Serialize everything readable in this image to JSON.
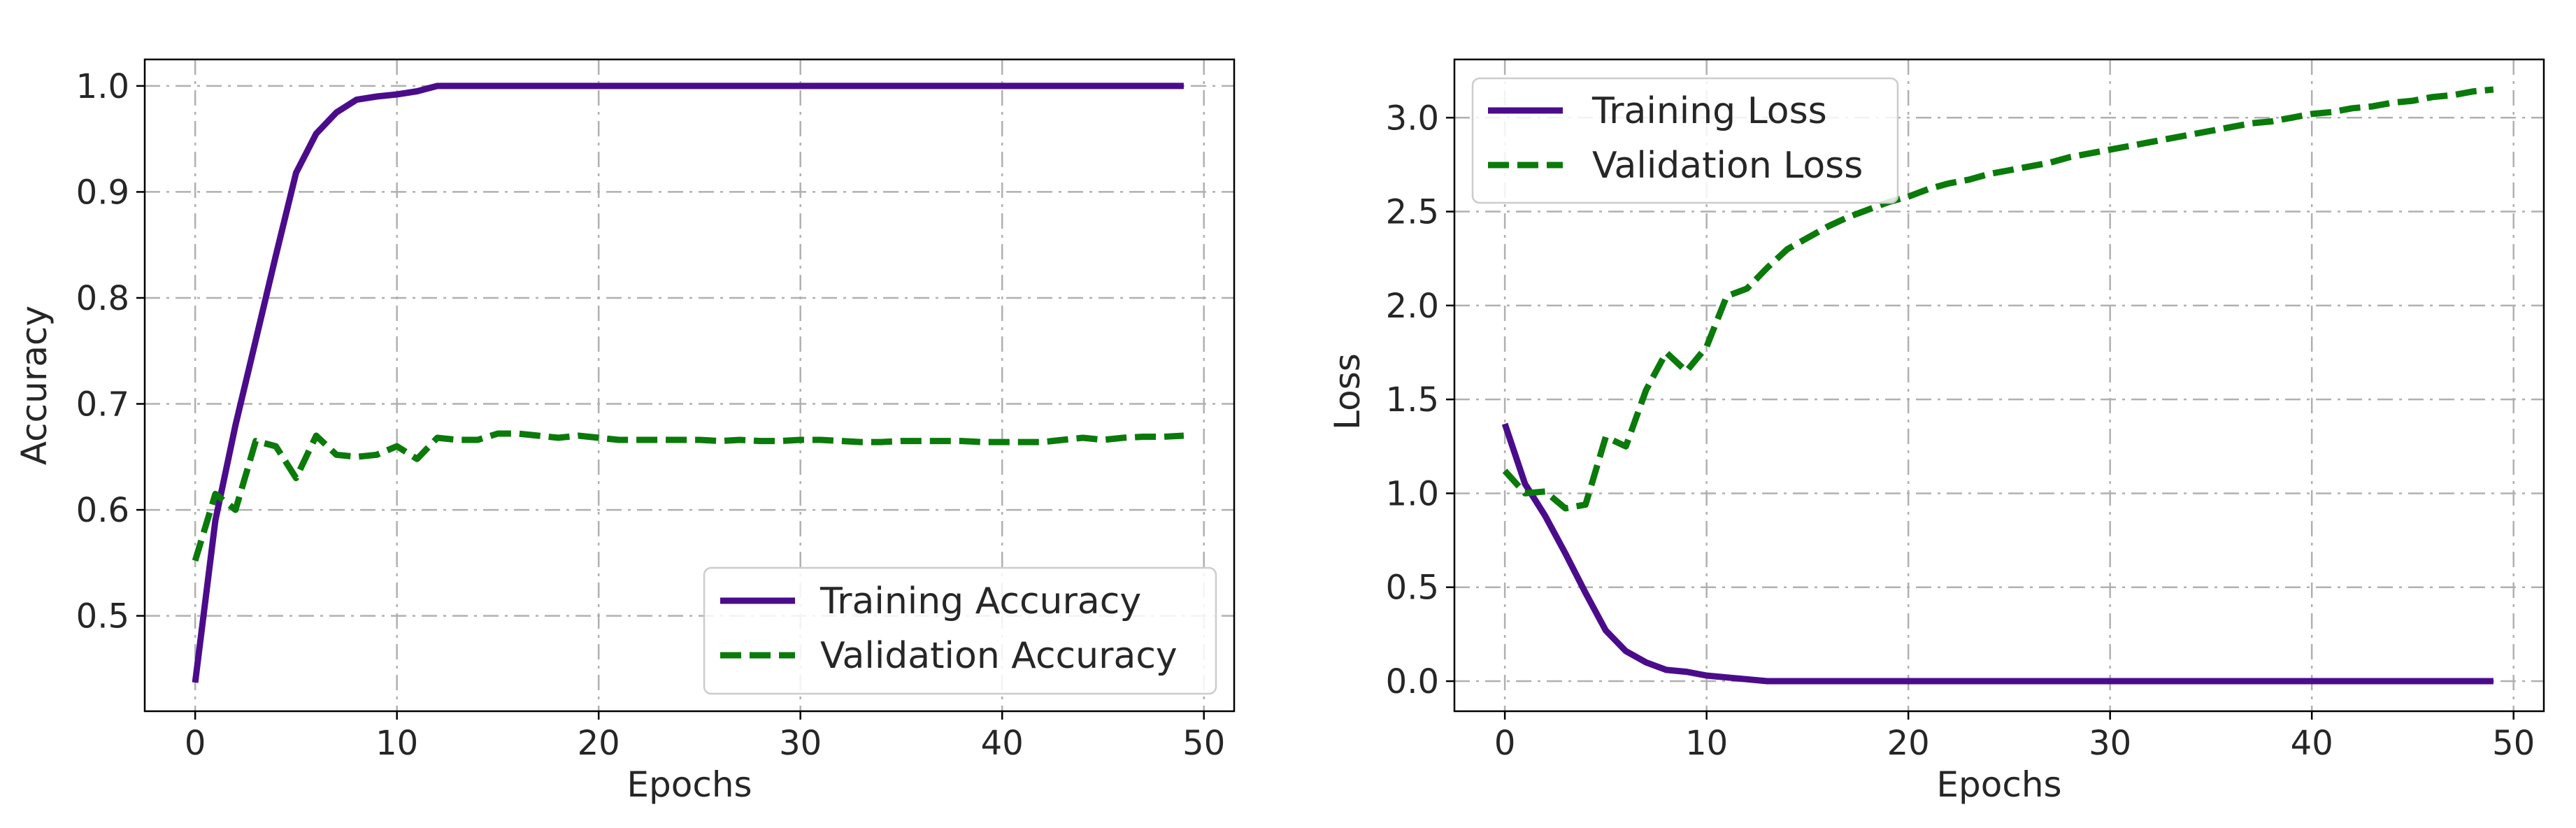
{
  "colors": {
    "training": "#4b0c8c",
    "validation": "#0a7a0a"
  },
  "chart_data": [
    {
      "type": "line",
      "title": "",
      "xlabel": "Epochs",
      "ylabel": "Accuracy",
      "xlim": [
        -2.5,
        51.5
      ],
      "ylim": [
        0.41,
        1.025
      ],
      "xticks": [
        0,
        10,
        20,
        30,
        40,
        50
      ],
      "xtick_labels": [
        "0",
        "10",
        "20",
        "30",
        "40",
        "50"
      ],
      "yticks": [
        0.5,
        0.6,
        0.7,
        0.8,
        0.9,
        1.0
      ],
      "ytick_labels": [
        "0.5",
        "0.6",
        "0.7",
        "0.8",
        "0.9",
        "1.0"
      ],
      "grid": true,
      "legend_position": "lower-right",
      "series": [
        {
          "name": "Training Accuracy",
          "style": "solid",
          "color": "#4b0c8c",
          "x": [
            0,
            1,
            2,
            3,
            4,
            5,
            6,
            7,
            8,
            9,
            10,
            11,
            12,
            13,
            14,
            15,
            16,
            17,
            18,
            19,
            20,
            21,
            22,
            23,
            24,
            25,
            26,
            27,
            28,
            29,
            30,
            31,
            32,
            33,
            34,
            35,
            36,
            37,
            38,
            39,
            40,
            41,
            42,
            43,
            44,
            45,
            46,
            47,
            48,
            49
          ],
          "values": [
            0.437,
            0.59,
            0.68,
            0.76,
            0.84,
            0.918,
            0.955,
            0.975,
            0.987,
            0.99,
            0.992,
            0.995,
            1.0,
            1.0,
            1.0,
            1.0,
            1.0,
            1.0,
            1.0,
            1.0,
            1.0,
            1.0,
            1.0,
            1.0,
            1.0,
            1.0,
            1.0,
            1.0,
            1.0,
            1.0,
            1.0,
            1.0,
            1.0,
            1.0,
            1.0,
            1.0,
            1.0,
            1.0,
            1.0,
            1.0,
            1.0,
            1.0,
            1.0,
            1.0,
            1.0,
            1.0,
            1.0,
            1.0,
            1.0,
            1.0
          ]
        },
        {
          "name": "Validation Accuracy",
          "style": "dashed",
          "color": "#0a7a0a",
          "x": [
            0,
            1,
            2,
            3,
            4,
            5,
            6,
            7,
            8,
            9,
            10,
            11,
            12,
            13,
            14,
            15,
            16,
            17,
            18,
            19,
            20,
            21,
            22,
            23,
            24,
            25,
            26,
            27,
            28,
            29,
            30,
            31,
            32,
            33,
            34,
            35,
            36,
            37,
            38,
            39,
            40,
            41,
            42,
            43,
            44,
            45,
            46,
            47,
            48,
            49
          ],
          "values": [
            0.552,
            0.615,
            0.6,
            0.665,
            0.66,
            0.63,
            0.67,
            0.652,
            0.65,
            0.652,
            0.66,
            0.648,
            0.668,
            0.666,
            0.666,
            0.672,
            0.672,
            0.67,
            0.668,
            0.67,
            0.668,
            0.666,
            0.666,
            0.666,
            0.666,
            0.666,
            0.665,
            0.666,
            0.665,
            0.665,
            0.666,
            0.666,
            0.665,
            0.664,
            0.664,
            0.665,
            0.665,
            0.665,
            0.665,
            0.664,
            0.664,
            0.664,
            0.664,
            0.666,
            0.668,
            0.666,
            0.668,
            0.669,
            0.669,
            0.67
          ]
        }
      ]
    },
    {
      "type": "line",
      "title": "",
      "xlabel": "Epochs",
      "ylabel": "Loss",
      "xlim": [
        -2.5,
        51.5
      ],
      "ylim": [
        -0.16,
        3.31
      ],
      "xticks": [
        0,
        10,
        20,
        30,
        40,
        50
      ],
      "xtick_labels": [
        "0",
        "10",
        "20",
        "30",
        "40",
        "50"
      ],
      "yticks": [
        0.0,
        0.5,
        1.0,
        1.5,
        2.0,
        2.5,
        3.0
      ],
      "ytick_labels": [
        "0.0",
        "0.5",
        "1.0",
        "1.5",
        "2.0",
        "2.5",
        "3.0"
      ],
      "grid": true,
      "legend_position": "upper-left",
      "series": [
        {
          "name": "Training Loss",
          "style": "solid",
          "color": "#4b0c8c",
          "x": [
            0,
            1,
            2,
            3,
            4,
            5,
            6,
            7,
            8,
            9,
            10,
            11,
            12,
            13,
            14,
            15,
            16,
            17,
            18,
            19,
            20,
            21,
            22,
            23,
            24,
            25,
            26,
            27,
            28,
            29,
            30,
            31,
            32,
            33,
            34,
            35,
            36,
            37,
            38,
            39,
            40,
            41,
            42,
            43,
            44,
            45,
            46,
            47,
            48,
            49
          ],
          "values": [
            1.37,
            1.05,
            0.88,
            0.68,
            0.47,
            0.27,
            0.16,
            0.1,
            0.06,
            0.05,
            0.03,
            0.02,
            0.01,
            0.0,
            0.0,
            0.0,
            0.0,
            0.0,
            0.0,
            0.0,
            0.0,
            0.0,
            0.0,
            0.0,
            0.0,
            0.0,
            0.0,
            0.0,
            0.0,
            0.0,
            0.0,
            0.0,
            0.0,
            0.0,
            0.0,
            0.0,
            0.0,
            0.0,
            0.0,
            0.0,
            0.0,
            0.0,
            0.0,
            0.0,
            0.0,
            0.0,
            0.0,
            0.0,
            0.0,
            0.0
          ]
        },
        {
          "name": "Validation Loss",
          "style": "dashed",
          "color": "#0a7a0a",
          "x": [
            0,
            1,
            2,
            3,
            4,
            5,
            6,
            7,
            8,
            9,
            10,
            11,
            12,
            13,
            14,
            15,
            16,
            17,
            18,
            19,
            20,
            21,
            22,
            23,
            24,
            25,
            26,
            27,
            28,
            29,
            30,
            31,
            32,
            33,
            34,
            35,
            36,
            37,
            38,
            39,
            40,
            41,
            42,
            43,
            44,
            45,
            46,
            47,
            48,
            49
          ],
          "values": [
            1.12,
            1.0,
            1.01,
            0.92,
            0.94,
            1.3,
            1.25,
            1.55,
            1.75,
            1.65,
            1.78,
            2.05,
            2.09,
            2.2,
            2.3,
            2.36,
            2.42,
            2.47,
            2.51,
            2.55,
            2.58,
            2.62,
            2.65,
            2.67,
            2.7,
            2.72,
            2.74,
            2.76,
            2.79,
            2.81,
            2.83,
            2.85,
            2.87,
            2.89,
            2.91,
            2.93,
            2.95,
            2.97,
            2.98,
            3.0,
            3.02,
            3.03,
            3.05,
            3.06,
            3.08,
            3.09,
            3.11,
            3.12,
            3.14,
            3.15
          ]
        }
      ]
    }
  ]
}
